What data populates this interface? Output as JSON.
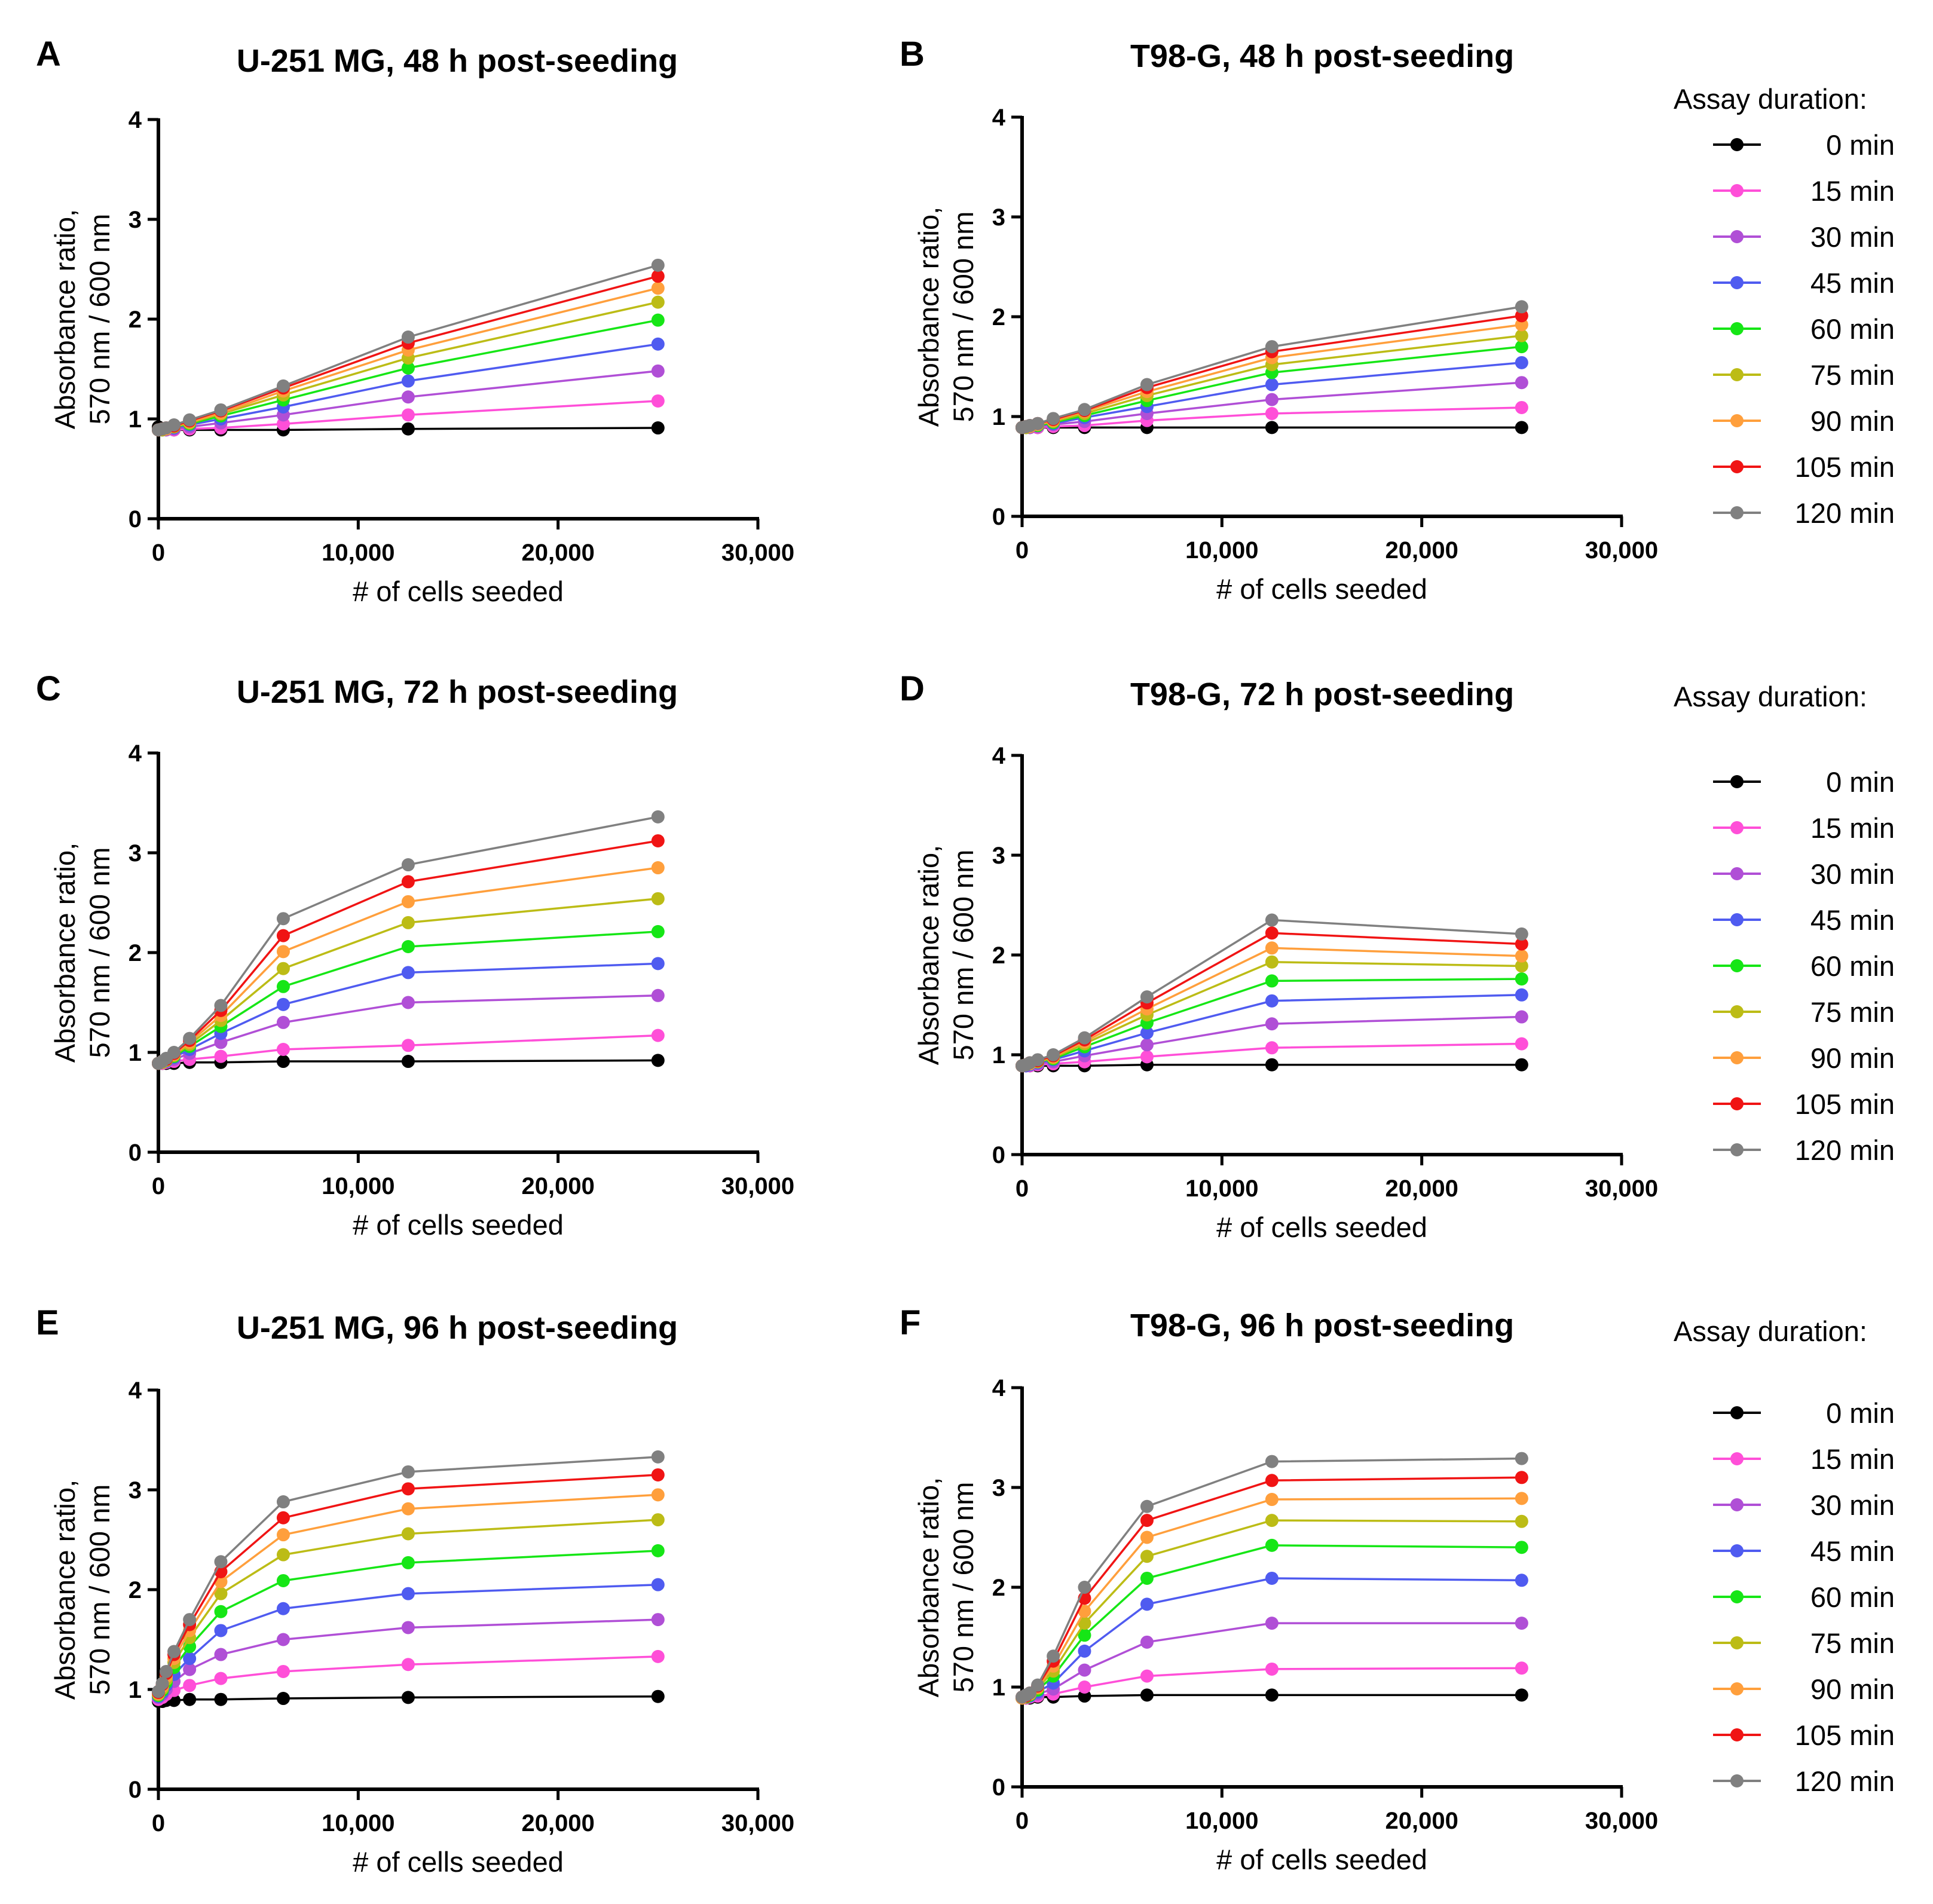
{
  "legend": {
    "title": "Assay duration:",
    "entries": [
      {
        "label": "0 min",
        "color": "#000000"
      },
      {
        "label": "15 min",
        "color": "#ff4fd8"
      },
      {
        "label": "30 min",
        "color": "#b04fd6"
      },
      {
        "label": "45 min",
        "color": "#4f5bf0"
      },
      {
        "label": "60 min",
        "color": "#16e616"
      },
      {
        "label": "75 min",
        "color": "#bcbc16"
      },
      {
        "label": "90 min",
        "color": "#ff9f3c"
      },
      {
        "label": "105 min",
        "color": "#f01414"
      },
      {
        "label": "120 min",
        "color": "#808080"
      }
    ]
  },
  "chart_data": [
    {
      "panel": "A",
      "type": "line",
      "title": "U-251 MG, 48 h post-seeding",
      "xlabel": "# of cells seeded",
      "ylabel": [
        "Absorbance ratio,",
        "570 nm / 600 nm"
      ],
      "xlim": [
        0,
        30000
      ],
      "ylim": [
        0,
        4
      ],
      "xticks": [
        "0",
        "10,000",
        "20,000",
        "30,000"
      ],
      "yticks": [
        "0",
        "1",
        "2",
        "3",
        "4"
      ],
      "x": [
        0,
        195,
        390,
        780,
        1560,
        3125,
        6250,
        12500,
        25000
      ],
      "series": [
        {
          "name": "0 min",
          "values": [
            0.92,
            0.9,
            0.9,
            0.89,
            0.89,
            0.89,
            0.89,
            0.9,
            0.91
          ]
        },
        {
          "name": "15 min",
          "values": [
            0.89,
            0.89,
            0.89,
            0.89,
            0.9,
            0.91,
            0.95,
            1.04,
            1.18
          ]
        },
        {
          "name": "30 min",
          "values": [
            0.89,
            0.89,
            0.89,
            0.9,
            0.92,
            0.96,
            1.04,
            1.22,
            1.48
          ]
        },
        {
          "name": "45 min",
          "values": [
            0.89,
            0.89,
            0.9,
            0.91,
            0.94,
            1.0,
            1.12,
            1.38,
            1.75
          ]
        },
        {
          "name": "60 min",
          "values": [
            0.89,
            0.89,
            0.9,
            0.92,
            0.95,
            1.03,
            1.19,
            1.51,
            1.99
          ]
        },
        {
          "name": "75 min",
          "values": [
            0.89,
            0.89,
            0.9,
            0.92,
            0.96,
            1.05,
            1.24,
            1.61,
            2.17
          ]
        },
        {
          "name": "90 min",
          "values": [
            0.89,
            0.9,
            0.9,
            0.93,
            0.97,
            1.06,
            1.28,
            1.69,
            2.31
          ]
        },
        {
          "name": "105 min",
          "values": [
            0.89,
            0.9,
            0.91,
            0.93,
            0.98,
            1.08,
            1.31,
            1.76,
            2.43
          ]
        },
        {
          "name": "120 min",
          "values": [
            0.89,
            0.9,
            0.91,
            0.94,
            0.99,
            1.09,
            1.33,
            1.82,
            2.54
          ]
        }
      ]
    },
    {
      "panel": "B",
      "type": "line",
      "title": "T98-G, 48 h post-seeding",
      "xlabel": "# of cells seeded",
      "ylabel": [
        "Absorbance ratio,",
        "570 nm / 600 nm"
      ],
      "xlim": [
        0,
        30000
      ],
      "ylim": [
        0,
        4
      ],
      "xticks": [
        "0",
        "10,000",
        "20,000",
        "30,000"
      ],
      "yticks": [
        "0",
        "1",
        "2",
        "3",
        "4"
      ],
      "x": [
        0,
        195,
        390,
        780,
        1560,
        3125,
        6250,
        12500,
        25000
      ],
      "series": [
        {
          "name": "0 min",
          "values": [
            0.89,
            0.89,
            0.89,
            0.89,
            0.89,
            0.89,
            0.89,
            0.89,
            0.89
          ]
        },
        {
          "name": "15 min",
          "values": [
            0.89,
            0.89,
            0.89,
            0.89,
            0.9,
            0.91,
            0.96,
            1.03,
            1.09
          ]
        },
        {
          "name": "30 min",
          "values": [
            0.89,
            0.89,
            0.89,
            0.9,
            0.92,
            0.95,
            1.03,
            1.17,
            1.34
          ]
        },
        {
          "name": "45 min",
          "values": [
            0.89,
            0.89,
            0.9,
            0.91,
            0.93,
            0.99,
            1.1,
            1.32,
            1.54
          ]
        },
        {
          "name": "60 min",
          "values": [
            0.89,
            0.89,
            0.9,
            0.91,
            0.94,
            1.01,
            1.16,
            1.44,
            1.7
          ]
        },
        {
          "name": "75 min",
          "values": [
            0.89,
            0.89,
            0.9,
            0.92,
            0.95,
            1.03,
            1.21,
            1.52,
            1.81
          ]
        },
        {
          "name": "90 min",
          "values": [
            0.89,
            0.9,
            0.9,
            0.92,
            0.96,
            1.05,
            1.25,
            1.59,
            1.92
          ]
        },
        {
          "name": "105 min",
          "values": [
            0.89,
            0.9,
            0.91,
            0.93,
            0.97,
            1.06,
            1.29,
            1.65,
            2.01
          ]
        },
        {
          "name": "120 min",
          "values": [
            0.89,
            0.9,
            0.91,
            0.93,
            0.98,
            1.07,
            1.32,
            1.7,
            2.1
          ]
        }
      ]
    },
    {
      "panel": "C",
      "type": "line",
      "title": "U-251 MG, 72 h post-seeding",
      "xlabel": "# of cells seeded",
      "ylabel": [
        "Absorbance ratio,",
        "570 nm / 600 nm"
      ],
      "xlim": [
        0,
        30000
      ],
      "ylim": [
        0,
        4
      ],
      "xticks": [
        "0",
        "10,000",
        "20,000",
        "30,000"
      ],
      "yticks": [
        "0",
        "1",
        "2",
        "3",
        "4"
      ],
      "x": [
        0,
        195,
        390,
        780,
        1560,
        3125,
        6250,
        12500,
        25000
      ],
      "series": [
        {
          "name": "0 min",
          "values": [
            0.89,
            0.89,
            0.89,
            0.89,
            0.9,
            0.9,
            0.91,
            0.91,
            0.92
          ]
        },
        {
          "name": "15 min",
          "values": [
            0.89,
            0.89,
            0.9,
            0.91,
            0.93,
            0.96,
            1.03,
            1.07,
            1.17
          ]
        },
        {
          "name": "30 min",
          "values": [
            0.89,
            0.9,
            0.91,
            0.93,
            0.99,
            1.1,
            1.3,
            1.5,
            1.57
          ]
        },
        {
          "name": "45 min",
          "values": [
            0.89,
            0.9,
            0.91,
            0.95,
            1.03,
            1.19,
            1.48,
            1.8,
            1.89
          ]
        },
        {
          "name": "60 min",
          "values": [
            0.89,
            0.9,
            0.92,
            0.96,
            1.06,
            1.26,
            1.66,
            2.06,
            2.21
          ]
        },
        {
          "name": "75 min",
          "values": [
            0.89,
            0.9,
            0.92,
            0.97,
            1.08,
            1.32,
            1.84,
            2.3,
            2.54
          ]
        },
        {
          "name": "90 min",
          "values": [
            0.89,
            0.91,
            0.93,
            0.98,
            1.1,
            1.37,
            2.01,
            2.51,
            2.85
          ]
        },
        {
          "name": "105 min",
          "values": [
            0.89,
            0.91,
            0.93,
            0.99,
            1.12,
            1.42,
            2.17,
            2.71,
            3.12
          ]
        },
        {
          "name": "120 min",
          "values": [
            0.89,
            0.91,
            0.94,
            1.0,
            1.14,
            1.47,
            2.34,
            2.88,
            3.36
          ]
        }
      ]
    },
    {
      "panel": "D",
      "type": "line",
      "title": "T98-G, 72 h post-seeding",
      "xlabel": "# of cells seeded",
      "ylabel": [
        "Absorbance ratio,",
        "570 nm / 600 nm"
      ],
      "xlim": [
        0,
        30000
      ],
      "ylim": [
        0,
        4
      ],
      "xticks": [
        "0",
        "10,000",
        "20,000",
        "30,000"
      ],
      "yticks": [
        "0",
        "1",
        "2",
        "3",
        "4"
      ],
      "x": [
        0,
        195,
        390,
        780,
        1560,
        3125,
        6250,
        12500,
        25000
      ],
      "series": [
        {
          "name": "0 min",
          "values": [
            0.89,
            0.89,
            0.89,
            0.89,
            0.89,
            0.89,
            0.9,
            0.9,
            0.9
          ]
        },
        {
          "name": "15 min",
          "values": [
            0.89,
            0.89,
            0.89,
            0.9,
            0.91,
            0.93,
            0.98,
            1.07,
            1.11
          ]
        },
        {
          "name": "30 min",
          "values": [
            0.89,
            0.89,
            0.9,
            0.91,
            0.93,
            0.99,
            1.1,
            1.31,
            1.38
          ]
        },
        {
          "name": "45 min",
          "values": [
            0.89,
            0.89,
            0.9,
            0.92,
            0.95,
            1.04,
            1.22,
            1.54,
            1.6
          ]
        },
        {
          "name": "60 min",
          "values": [
            0.89,
            0.9,
            0.91,
            0.93,
            0.96,
            1.08,
            1.32,
            1.74,
            1.76
          ]
        },
        {
          "name": "75 min",
          "values": [
            0.89,
            0.9,
            0.91,
            0.93,
            0.97,
            1.11,
            1.4,
            1.93,
            1.89
          ]
        },
        {
          "name": "90 min",
          "values": [
            0.89,
            0.9,
            0.91,
            0.94,
            0.98,
            1.13,
            1.46,
            2.07,
            1.99
          ]
        },
        {
          "name": "105 min",
          "values": [
            0.89,
            0.9,
            0.92,
            0.94,
            0.99,
            1.15,
            1.52,
            2.22,
            2.11
          ]
        },
        {
          "name": "120 min",
          "values": [
            0.89,
            0.9,
            0.92,
            0.95,
            1.0,
            1.17,
            1.58,
            2.35,
            2.21
          ]
        }
      ]
    },
    {
      "panel": "E",
      "type": "line",
      "title": "U-251 MG, 96 h post-seeding",
      "xlabel": "# of cells seeded",
      "ylabel": [
        "Absorbance ratio,",
        "570 nm / 600 nm"
      ],
      "xlim": [
        0,
        30000
      ],
      "ylim": [
        0,
        4
      ],
      "xticks": [
        "0",
        "10,000",
        "20,000",
        "30,000"
      ],
      "yticks": [
        "0",
        "1",
        "2",
        "3",
        "4"
      ],
      "x": [
        0,
        195,
        390,
        780,
        1560,
        3125,
        6250,
        12500,
        25000
      ],
      "series": [
        {
          "name": "0 min",
          "values": [
            0.88,
            0.88,
            0.89,
            0.89,
            0.9,
            0.9,
            0.91,
            0.92,
            0.93
          ]
        },
        {
          "name": "15 min",
          "values": [
            0.9,
            0.92,
            0.95,
            0.99,
            1.04,
            1.11,
            1.18,
            1.25,
            1.33
          ]
        },
        {
          "name": "30 min",
          "values": [
            0.92,
            0.95,
            1.0,
            1.08,
            1.2,
            1.35,
            1.5,
            1.62,
            1.7
          ]
        },
        {
          "name": "45 min",
          "values": [
            0.93,
            0.97,
            1.04,
            1.15,
            1.31,
            1.59,
            1.81,
            1.96,
            2.05
          ]
        },
        {
          "name": "60 min",
          "values": [
            0.94,
            0.99,
            1.07,
            1.22,
            1.43,
            1.78,
            2.09,
            2.27,
            2.39
          ]
        },
        {
          "name": "75 min",
          "values": [
            0.95,
            1.01,
            1.1,
            1.27,
            1.52,
            1.96,
            2.35,
            2.56,
            2.7
          ]
        },
        {
          "name": "90 min",
          "values": [
            0.96,
            1.03,
            1.13,
            1.31,
            1.59,
            2.08,
            2.55,
            2.81,
            2.95
          ]
        },
        {
          "name": "105 min",
          "values": [
            0.97,
            1.05,
            1.16,
            1.35,
            1.65,
            2.18,
            2.72,
            3.01,
            3.15
          ]
        },
        {
          "name": "120 min",
          "values": [
            0.98,
            1.06,
            1.18,
            1.38,
            1.7,
            2.28,
            2.88,
            3.18,
            3.33
          ]
        }
      ]
    },
    {
      "panel": "F",
      "type": "line",
      "title": "T98-G, 96 h post-seeding",
      "xlabel": "# of cells seeded",
      "ylabel": [
        "Absorbance ratio,",
        "570 nm / 600 nm"
      ],
      "xlim": [
        0,
        30000
      ],
      "ylim": [
        0,
        4
      ],
      "xticks": [
        "0",
        "10,000",
        "20,000",
        "30,000"
      ],
      "yticks": [
        "0",
        "1",
        "2",
        "3",
        "4"
      ],
      "x": [
        0,
        195,
        390,
        780,
        1560,
        3125,
        6250,
        12500,
        25000
      ],
      "series": [
        {
          "name": "0 min",
          "values": [
            0.89,
            0.89,
            0.89,
            0.9,
            0.9,
            0.91,
            0.92,
            0.92,
            0.92
          ]
        },
        {
          "name": "15 min",
          "values": [
            0.89,
            0.89,
            0.9,
            0.91,
            0.93,
            1.0,
            1.11,
            1.18,
            1.19
          ]
        },
        {
          "name": "30 min",
          "values": [
            0.89,
            0.9,
            0.91,
            0.93,
            0.98,
            1.17,
            1.45,
            1.64,
            1.64
          ]
        },
        {
          "name": "45 min",
          "values": [
            0.89,
            0.9,
            0.91,
            0.95,
            1.04,
            1.36,
            1.83,
            2.09,
            2.07
          ]
        },
        {
          "name": "60 min",
          "values": [
            0.89,
            0.9,
            0.92,
            0.97,
            1.11,
            1.52,
            2.09,
            2.42,
            2.4
          ]
        },
        {
          "name": "75 min",
          "values": [
            0.89,
            0.91,
            0.93,
            0.99,
            1.16,
            1.64,
            2.31,
            2.67,
            2.66
          ]
        },
        {
          "name": "90 min",
          "values": [
            0.89,
            0.91,
            0.93,
            1.0,
            1.21,
            1.76,
            2.5,
            2.88,
            2.89
          ]
        },
        {
          "name": "105 min",
          "values": [
            0.9,
            0.91,
            0.94,
            1.01,
            1.26,
            1.89,
            2.67,
            3.07,
            3.1
          ]
        },
        {
          "name": "120 min",
          "values": [
            0.9,
            0.92,
            0.94,
            1.02,
            1.31,
            2.0,
            2.81,
            3.26,
            3.29
          ]
        }
      ]
    }
  ]
}
